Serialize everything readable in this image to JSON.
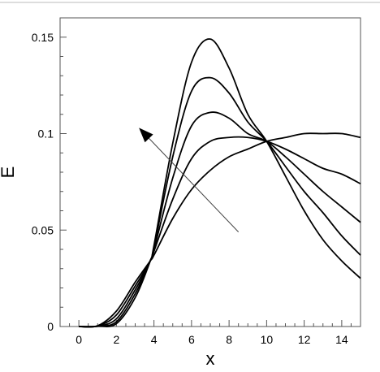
{
  "chart_data": {
    "type": "line",
    "title": "",
    "xlabel": "x",
    "ylabel": "E",
    "xlim": [
      -1,
      15
    ],
    "ylim": [
      0,
      0.16
    ],
    "x_ticks": [
      0,
      2,
      4,
      6,
      8,
      10,
      12,
      14
    ],
    "x_tick_labels": [
      "0",
      "2",
      "4",
      "6",
      "8",
      "10",
      "12",
      "14"
    ],
    "y_ticks": [
      0,
      0.05,
      0.1,
      0.15
    ],
    "y_tick_labels": [
      "0",
      "0.05",
      "0.1",
      "0.15"
    ],
    "grid": false,
    "legend": "none",
    "line_color": "#000000",
    "x": [
      0,
      1,
      2,
      3,
      3.8,
      4,
      5,
      6,
      7,
      8,
      9,
      10,
      11,
      12,
      13,
      14,
      15
    ],
    "series": [
      {
        "values": [
          0,
          0.0001,
          0.0015,
          0.015,
          0.034,
          0.042,
          0.095,
          0.137,
          0.149,
          0.134,
          0.11,
          0.096,
          0.078,
          0.06,
          0.045,
          0.034,
          0.025
        ]
      },
      {
        "values": [
          0,
          0.0001,
          0.0025,
          0.017,
          0.034,
          0.041,
          0.088,
          0.122,
          0.129,
          0.121,
          0.106,
          0.096,
          0.083,
          0.07,
          0.059,
          0.047,
          0.037
        ]
      },
      {
        "values": [
          0,
          0.0002,
          0.004,
          0.019,
          0.034,
          0.04,
          0.077,
          0.104,
          0.111,
          0.108,
          0.1,
          0.096,
          0.088,
          0.079,
          0.07,
          0.062,
          0.054
        ]
      },
      {
        "values": [
          0,
          0.0003,
          0.006,
          0.021,
          0.034,
          0.039,
          0.066,
          0.087,
          0.096,
          0.098,
          0.098,
          0.096,
          0.092,
          0.087,
          0.082,
          0.079,
          0.074
        ]
      },
      {
        "values": [
          0,
          0.0004,
          0.008,
          0.023,
          0.034,
          0.037,
          0.056,
          0.071,
          0.081,
          0.088,
          0.092,
          0.096,
          0.098,
          0.1,
          0.1,
          0.1,
          0.098
        ]
      }
    ],
    "annotation": {
      "type": "arrow",
      "from": [
        8.5,
        0.049
      ],
      "to": [
        3.2,
        0.103
      ]
    }
  }
}
